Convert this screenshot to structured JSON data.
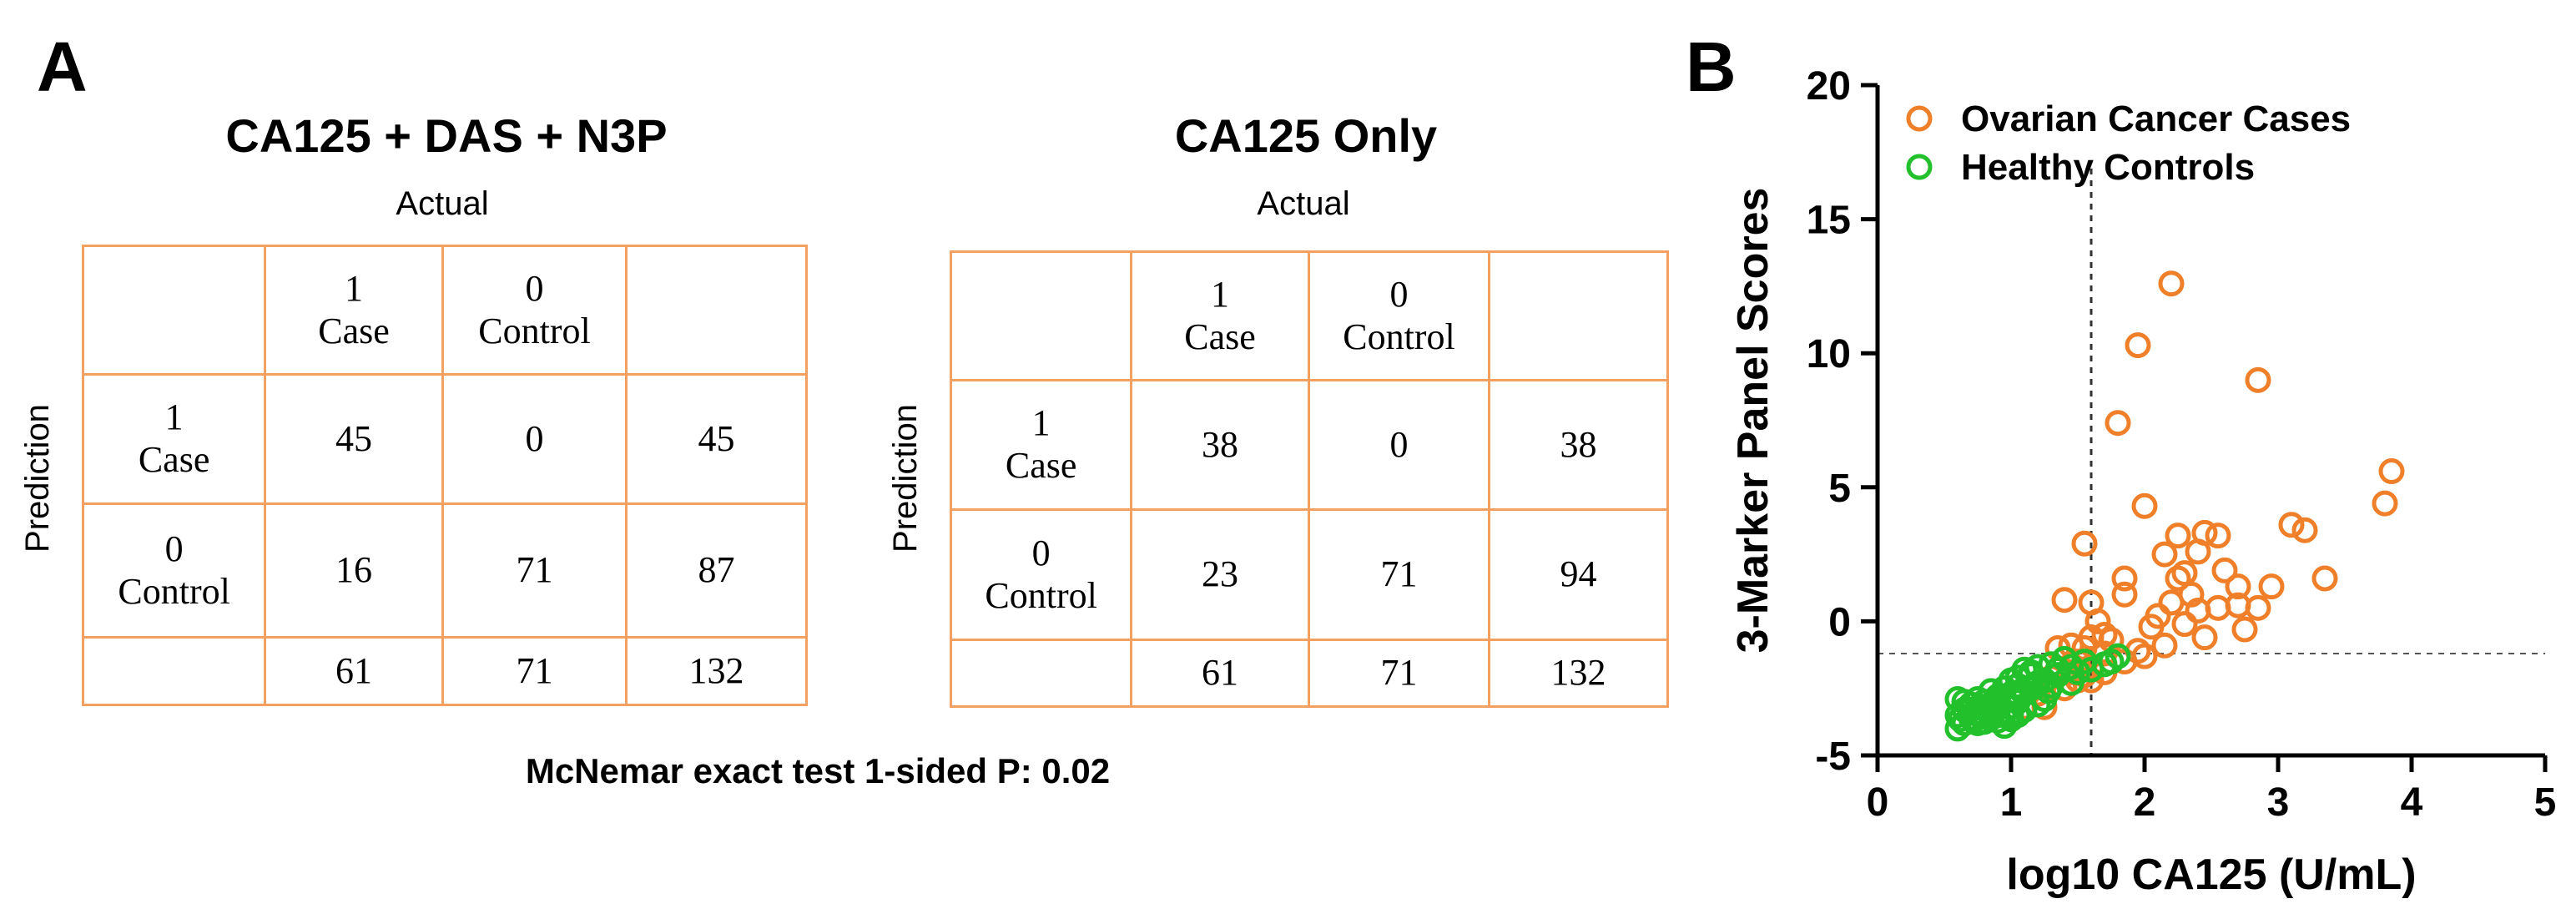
{
  "panel_a": {
    "letter": "A",
    "mcnemar": "McNemar exact test 1-sided P: 0.02",
    "tables": [
      {
        "title": "CA125 + DAS + N3P",
        "actual_label": "Actual",
        "prediction_label": "Prediction",
        "header": [
          "",
          "1\nCase",
          "0\nControl",
          ""
        ],
        "rows": [
          [
            "1\nCase",
            "45",
            "0",
            "45"
          ],
          [
            "0\nControl",
            "16",
            "71",
            "87"
          ],
          [
            "",
            "61",
            "71",
            "132"
          ]
        ]
      },
      {
        "title": "CA125 Only",
        "actual_label": "Actual",
        "prediction_label": "Prediction",
        "header": [
          "",
          "1\nCase",
          "0\nControl",
          ""
        ],
        "rows": [
          [
            "1\nCase",
            "38",
            "0",
            "38"
          ],
          [
            "0\nControl",
            "23",
            "71",
            "94"
          ],
          [
            "",
            "61",
            "71",
            "132"
          ]
        ]
      }
    ]
  },
  "panel_b": {
    "letter": "B"
  },
  "chart_data": {
    "type": "scatter",
    "title": "",
    "xlabel": "log10 CA125 (U/mL)",
    "ylabel": "3-Marker Panel Scores",
    "xlim": [
      0,
      5
    ],
    "ylim": [
      -5,
      20
    ],
    "xticks": [
      0,
      1,
      2,
      3,
      4,
      5
    ],
    "yticks": [
      -5,
      0,
      5,
      10,
      15,
      20
    ],
    "grid": false,
    "legend_position": "top-left",
    "reference_lines": {
      "x": 1.6,
      "y": -1.2
    },
    "series": [
      {
        "name": "Ovarian Cancer Cases",
        "color": "#f07f2a",
        "marker": "open-circle",
        "points": [
          [
            2.2,
            12.6
          ],
          [
            1.95,
            10.3
          ],
          [
            2.85,
            9.0
          ],
          [
            1.8,
            7.4
          ],
          [
            3.85,
            5.6
          ],
          [
            3.8,
            4.4
          ],
          [
            2.0,
            4.3
          ],
          [
            3.1,
            3.6
          ],
          [
            3.2,
            3.4
          ],
          [
            2.25,
            3.2
          ],
          [
            2.45,
            3.3
          ],
          [
            2.55,
            3.2
          ],
          [
            1.55,
            2.9
          ],
          [
            2.15,
            2.5
          ],
          [
            2.4,
            2.6
          ],
          [
            2.6,
            1.9
          ],
          [
            2.3,
            1.8
          ],
          [
            2.25,
            1.6
          ],
          [
            3.35,
            1.6
          ],
          [
            1.85,
            1.6
          ],
          [
            2.7,
            1.3
          ],
          [
            2.95,
            1.3
          ],
          [
            1.85,
            1.0
          ],
          [
            2.35,
            1.0
          ],
          [
            1.4,
            0.8
          ],
          [
            1.6,
            0.7
          ],
          [
            2.2,
            0.7
          ],
          [
            2.55,
            0.5
          ],
          [
            2.85,
            0.5
          ],
          [
            2.7,
            0.6
          ],
          [
            2.4,
            0.4
          ],
          [
            2.1,
            0.2
          ],
          [
            1.65,
            0.0
          ],
          [
            2.3,
            -0.1
          ],
          [
            2.05,
            -0.2
          ],
          [
            2.75,
            -0.3
          ],
          [
            1.7,
            -0.5
          ],
          [
            1.6,
            -0.6
          ],
          [
            1.75,
            -0.7
          ],
          [
            2.45,
            -0.6
          ],
          [
            1.45,
            -0.9
          ],
          [
            1.35,
            -1.0
          ],
          [
            1.55,
            -1.0
          ],
          [
            2.15,
            -0.9
          ],
          [
            1.95,
            -1.1
          ],
          [
            1.7,
            -1.2
          ],
          [
            2.0,
            -1.3
          ],
          [
            1.85,
            -1.5
          ],
          [
            1.5,
            -1.5
          ],
          [
            1.6,
            -1.7
          ],
          [
            1.45,
            -1.9
          ],
          [
            1.7,
            -1.9
          ],
          [
            1.55,
            -2.0
          ],
          [
            1.3,
            -2.1
          ],
          [
            1.6,
            -2.2
          ],
          [
            1.4,
            -2.5
          ],
          [
            1.2,
            -2.7
          ],
          [
            1.05,
            -2.8
          ],
          [
            1.1,
            -3.2
          ],
          [
            1.25,
            -3.2
          ],
          [
            1.5,
            -2.2
          ]
        ]
      },
      {
        "name": "Healthy Controls",
        "color": "#22c02a",
        "marker": "open-circle",
        "points": [
          [
            1.8,
            -1.3
          ],
          [
            1.7,
            -1.6
          ],
          [
            1.55,
            -1.5
          ],
          [
            1.4,
            -1.4
          ],
          [
            1.3,
            -1.6
          ],
          [
            1.2,
            -1.7
          ],
          [
            1.1,
            -1.8
          ],
          [
            1.15,
            -2.0
          ],
          [
            1.35,
            -2.0
          ],
          [
            1.5,
            -1.9
          ],
          [
            1.25,
            -2.2
          ],
          [
            1.0,
            -2.2
          ],
          [
            1.05,
            -2.4
          ],
          [
            0.95,
            -2.5
          ],
          [
            1.15,
            -2.5
          ],
          [
            1.3,
            -2.4
          ],
          [
            0.85,
            -2.6
          ],
          [
            0.9,
            -2.8
          ],
          [
            1.0,
            -2.7
          ],
          [
            1.1,
            -2.7
          ],
          [
            0.75,
            -2.9
          ],
          [
            0.8,
            -3.0
          ],
          [
            0.95,
            -3.0
          ],
          [
            1.05,
            -3.0
          ],
          [
            0.6,
            -2.9
          ],
          [
            0.7,
            -3.1
          ],
          [
            0.85,
            -3.2
          ],
          [
            0.9,
            -3.1
          ],
          [
            1.0,
            -3.2
          ],
          [
            0.95,
            -3.35
          ],
          [
            0.65,
            -3.3
          ],
          [
            0.75,
            -3.4
          ],
          [
            0.85,
            -3.4
          ],
          [
            0.9,
            -3.5
          ],
          [
            1.0,
            -3.45
          ],
          [
            0.8,
            -3.55
          ],
          [
            0.6,
            -3.5
          ],
          [
            0.7,
            -3.6
          ],
          [
            0.9,
            -3.7
          ],
          [
            0.65,
            -3.8
          ],
          [
            0.75,
            -3.8
          ],
          [
            0.6,
            -4.0
          ],
          [
            0.85,
            -3.6
          ],
          [
            1.05,
            -3.5
          ],
          [
            1.2,
            -3.1
          ],
          [
            1.1,
            -3.3
          ],
          [
            1.25,
            -2.9
          ],
          [
            1.45,
            -2.3
          ],
          [
            1.6,
            -1.8
          ],
          [
            1.75,
            -1.5
          ],
          [
            0.95,
            -3.9
          ],
          [
            0.8,
            -3.75
          ],
          [
            1.0,
            -3.65
          ],
          [
            1.2,
            -2.3
          ],
          [
            0.7,
            -3.3
          ],
          [
            0.9,
            -3.25
          ],
          [
            1.35,
            -1.8
          ],
          [
            1.45,
            -1.7
          ],
          [
            0.8,
            -3.2
          ],
          [
            1.05,
            -2.1
          ],
          [
            0.9,
            -3.0
          ],
          [
            0.65,
            -3.0
          ],
          [
            1.15,
            -1.9
          ],
          [
            0.98,
            -3.55
          ],
          [
            0.72,
            -3.7
          ],
          [
            1.08,
            -2.6
          ],
          [
            0.88,
            -2.9
          ],
          [
            1.28,
            -2.6
          ],
          [
            1.18,
            -2.35
          ],
          [
            0.62,
            -3.65
          ],
          [
            0.78,
            -3.45
          ]
        ]
      }
    ]
  }
}
